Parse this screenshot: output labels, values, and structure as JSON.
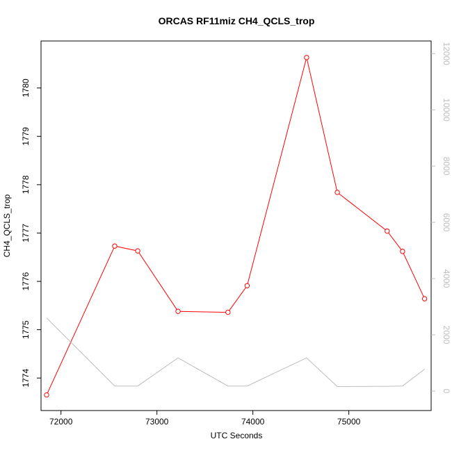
{
  "chart_data": {
    "type": "line",
    "title": "ORCAS RF11miz CH4_QCLS_trop",
    "xlabel": "UTC Seconds",
    "ylabel": "CH4_QCLS_trop",
    "xlim": [
      71850,
      75800
    ],
    "ylim": [
      1773.5,
      1780.8
    ],
    "y2lim": [
      0,
      12300
    ],
    "x_ticks": [
      72000,
      73000,
      74000,
      75000
    ],
    "y_ticks": [
      1774,
      1775,
      1776,
      1777,
      1778,
      1779,
      1780
    ],
    "y2_ticks": [
      0,
      2000,
      4000,
      6000,
      8000,
      10000,
      12000
    ],
    "series": [
      {
        "axis": "left",
        "color": "#ff0000",
        "markers": true,
        "x": [
          71850,
          72560,
          72800,
          73220,
          73740,
          73940,
          74560,
          74880,
          75400,
          75560,
          75790
        ],
        "y": [
          1773.65,
          1776.73,
          1776.63,
          1775.38,
          1775.36,
          1775.91,
          1780.63,
          1777.84,
          1777.04,
          1776.62,
          1775.64
        ]
      },
      {
        "axis": "right",
        "color": "#bdbdbd",
        "markers": false,
        "x": [
          71850,
          72560,
          72800,
          73220,
          73740,
          73940,
          74560,
          74880,
          75400,
          75560,
          75790
        ],
        "y": [
          2600,
          180,
          180,
          1180,
          180,
          180,
          1180,
          160,
          170,
          180,
          780
        ]
      }
    ]
  }
}
